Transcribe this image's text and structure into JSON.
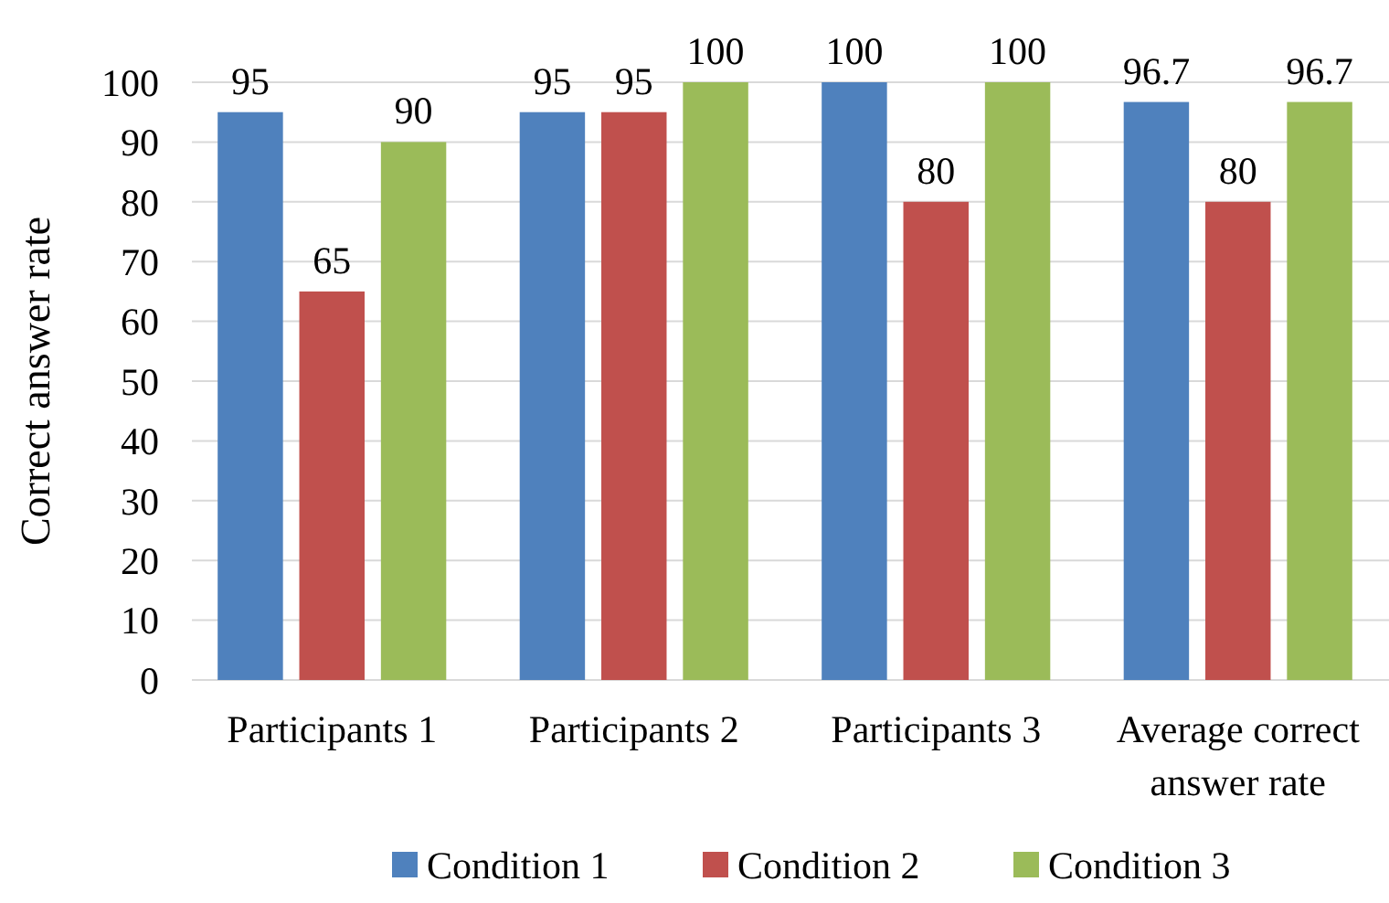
{
  "chart_data": {
    "type": "bar",
    "ylabel": "Correct answer rate",
    "categories": [
      "Participants 1",
      "Participants 2",
      "Participants 3",
      "Average correct answer rate"
    ],
    "series": [
      {
        "name": "Condition 1",
        "color": "#4f81bd",
        "values": [
          95,
          95,
          100,
          96.7
        ]
      },
      {
        "name": "Condition 2",
        "color": "#c0504d",
        "values": [
          65,
          95,
          80,
          80
        ]
      },
      {
        "name": "Condition 3",
        "color": "#9bbb59",
        "values": [
          90,
          100,
          100,
          96.7
        ]
      }
    ],
    "ylim": [
      0,
      100
    ],
    "yticks": [
      0,
      10,
      20,
      30,
      40,
      50,
      60,
      70,
      80,
      90,
      100
    ],
    "grid": "y",
    "legend": "bottom",
    "data_labels": true
  }
}
